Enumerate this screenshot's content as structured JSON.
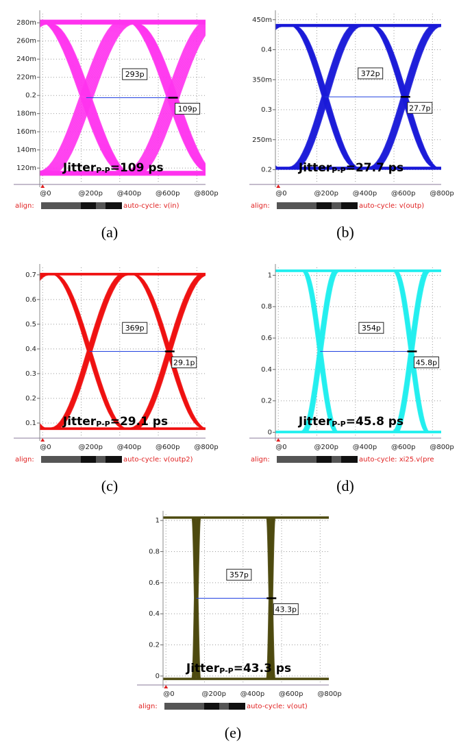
{
  "chart_data": [
    {
      "type": "eye",
      "caption": "(a)",
      "ylim": [
        0.105,
        0.29
      ],
      "xlim": [
        -15,
        845
      ],
      "yticks": [
        {
          "value": 0.12,
          "label": "120m"
        },
        {
          "value": 0.14,
          "label": "140m"
        },
        {
          "value": 0.16,
          "label": "160m"
        },
        {
          "value": 0.18,
          "label": "180m"
        },
        0.2,
        {
          "value": 0.22,
          "label": "220m"
        },
        {
          "value": 0.24,
          "label": "240m"
        },
        {
          "value": 0.26,
          "label": "260m"
        },
        {
          "value": 0.28,
          "label": "280m"
        }
      ],
      "xticks": [
        {
          "value": 0,
          "label": "@0"
        },
        {
          "value": 200,
          "label": "@200p"
        },
        {
          "value": 400,
          "label": "@400p"
        },
        {
          "value": 600,
          "label": "@600p"
        },
        {
          "value": 800,
          "label": "@800p"
        }
      ],
      "period_label": "293p",
      "jitter_label": "109p",
      "jitter": {
        "text": "Jitter",
        "sub": "P-P",
        "value": "=109 ps"
      },
      "align": "align:",
      "signal": "auto-cycle: v(in)",
      "color": "#ff33ee"
    },
    {
      "type": "eye",
      "caption": "(b)",
      "ylim": [
        0.18,
        0.46
      ],
      "xlim": [
        -15,
        845
      ],
      "yticks": [
        0.2,
        {
          "value": 0.25,
          "label": "250m"
        },
        0.3,
        {
          "value": 0.35,
          "label": "350m"
        },
        0.4,
        {
          "value": 0.45,
          "label": "450m"
        }
      ],
      "xticks": [
        {
          "value": 0,
          "label": "@0"
        },
        {
          "value": 200,
          "label": "@200p"
        },
        {
          "value": 400,
          "label": "@400p"
        },
        {
          "value": 600,
          "label": "@600p"
        },
        {
          "value": 800,
          "label": "@800p"
        }
      ],
      "period_label": "372p",
      "jitter_label": "27.7p",
      "jitter": {
        "text": "Jitter",
        "sub": "P-P",
        "value": "=27.7 ps"
      },
      "align": "align:",
      "signal": "auto-cycle: v(outp)",
      "color": "#1a1ad8"
    },
    {
      "type": "eye",
      "caption": "(c)",
      "ylim": [
        0.05,
        0.73
      ],
      "xlim": [
        -15,
        845
      ],
      "yticks": [
        0.1,
        0.2,
        0.3,
        0.4,
        0.5,
        0.6,
        0.7
      ],
      "xticks": [
        {
          "value": 0,
          "label": "@0"
        },
        {
          "value": 200,
          "label": "@200p"
        },
        {
          "value": 400,
          "label": "@400p"
        },
        {
          "value": 600,
          "label": "@600p"
        },
        {
          "value": 800,
          "label": "@800p"
        }
      ],
      "period_label": "369p",
      "jitter_label": "29.1p",
      "jitter": {
        "text": "Jitter",
        "sub": "P-P",
        "value": "=29.1 ps"
      },
      "align": "align:",
      "signal": "auto-cycle: v(outp2)",
      "color": "#ee1111"
    },
    {
      "type": "eye",
      "caption": "(d)",
      "ylim": [
        -0.02,
        1.05
      ],
      "xlim": [
        -15,
        845
      ],
      "yticks": [
        0,
        0.2,
        0.4,
        0.6,
        0.8,
        1
      ],
      "xticks": [
        {
          "value": 0,
          "label": "@0"
        },
        {
          "value": 200,
          "label": "@200p"
        },
        {
          "value": 400,
          "label": "@400p"
        },
        {
          "value": 600,
          "label": "@600p"
        },
        {
          "value": 800,
          "label": "@800p"
        }
      ],
      "period_label": "354p",
      "jitter_label": "45.8p",
      "jitter": {
        "text": "Jitter",
        "sub": "P-P",
        "value": "=45.8 ps"
      },
      "align": "align:",
      "signal": "auto-cycle: xi25.v(pre",
      "color": "#22eeee"
    },
    {
      "type": "eye",
      "caption": "(e)",
      "ylim": [
        -0.04,
        1.04
      ],
      "xlim": [
        -15,
        845
      ],
      "yticks": [
        0,
        0.2,
        0.4,
        0.6,
        0.8,
        1
      ],
      "xticks": [
        {
          "value": 0,
          "label": "@0"
        },
        {
          "value": 200,
          "label": "@200p"
        },
        {
          "value": 400,
          "label": "@400p"
        },
        {
          "value": 600,
          "label": "@600p"
        },
        {
          "value": 800,
          "label": "@800p"
        }
      ],
      "period_label": "357p",
      "jitter_label": "43.3p",
      "jitter": {
        "text": "Jitter",
        "sub": "P-P",
        "value": "=43.3 ps"
      },
      "align": "align:",
      "signal": "auto-cycle: v(out)",
      "color": "#4d4a0f"
    }
  ]
}
